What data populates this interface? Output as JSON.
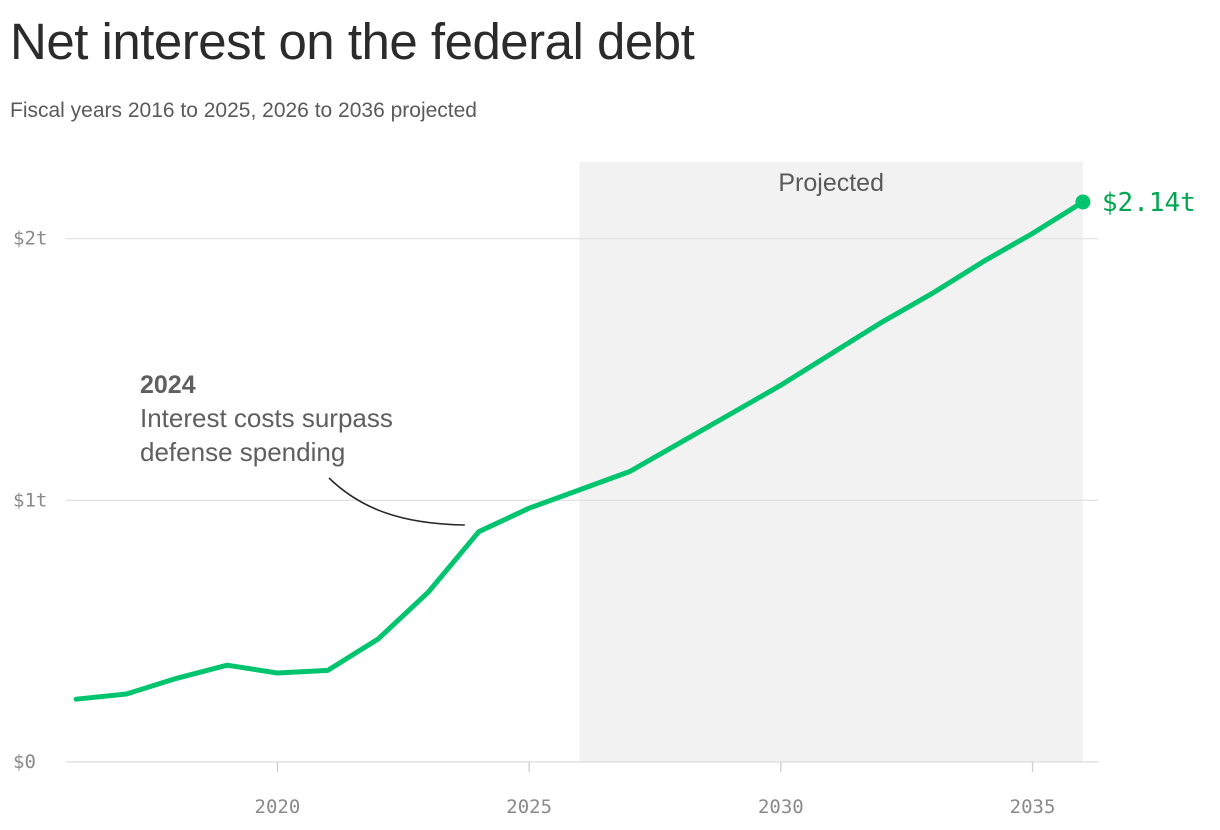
{
  "header": {
    "title": "Net interest on the federal debt",
    "subtitle": "Fiscal years 2016 to 2025, 2026 to 2036 projected"
  },
  "colors": {
    "line": "#00c56e",
    "end_label": "#00a651",
    "projected_band": "#f2f2f2",
    "grid": "#e4e4e4",
    "axis_text": "#8a8a8a"
  },
  "chart_data": {
    "type": "line",
    "title": "Net interest on the federal debt",
    "subtitle": "Fiscal years 2016 to 2025, 2026 to 2036 projected",
    "xlabel": "",
    "ylabel": "",
    "xlim": [
      2015.8,
      2036.3
    ],
    "ylim": [
      0,
      2.14
    ],
    "grid": "horizontal",
    "y_ticks": [
      {
        "value": 0,
        "label": "$0"
      },
      {
        "value": 1,
        "label": "$1t"
      },
      {
        "value": 2,
        "label": "$2t"
      }
    ],
    "x_ticks": [
      {
        "value": 2020,
        "label": "2020"
      },
      {
        "value": 2025,
        "label": "2025"
      },
      {
        "value": 2030,
        "label": "2030"
      },
      {
        "value": 2035,
        "label": "2035"
      }
    ],
    "projected_region": {
      "start": 2026,
      "end": 2036,
      "label": "Projected"
    },
    "series": [
      {
        "x": [
          2016,
          2017,
          2018,
          2019,
          2020,
          2021,
          2022,
          2023,
          2024,
          2025,
          2026,
          2027,
          2028,
          2029,
          2030,
          2031,
          2032,
          2033,
          2034,
          2035,
          2036
        ],
        "values": [
          0.24,
          0.26,
          0.32,
          0.37,
          0.34,
          0.35,
          0.47,
          0.65,
          0.88,
          0.97,
          1.04,
          1.11,
          1.22,
          1.33,
          1.44,
          1.56,
          1.68,
          1.79,
          1.91,
          2.02,
          2.14
        ]
      }
    ],
    "end_label": "$2.14t",
    "annotation": {
      "heading": "2024",
      "lines": [
        "Interest costs surpass",
        "defense spending"
      ],
      "target_x": 2024
    }
  }
}
